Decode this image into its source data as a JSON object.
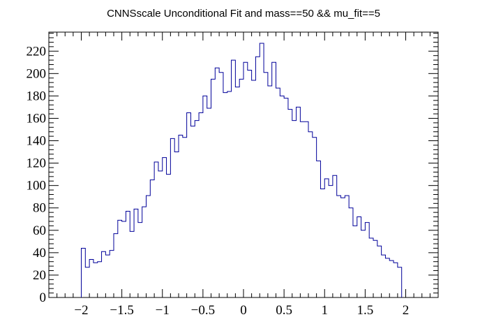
{
  "chart_data": {
    "type": "histogram",
    "title": "CNNSscale Unconditional Fit and mass==50 && mu_fit==5",
    "xlabel": "",
    "ylabel": "",
    "xlim": [
      -2.4,
      2.4
    ],
    "ylim": [
      0,
      237
    ],
    "x_ticks": [
      -2,
      -1.5,
      -1,
      -0.5,
      0,
      0.5,
      1,
      1.5,
      2
    ],
    "x_tick_labels": [
      "−2",
      "−1.5",
      "−1",
      "−0.5",
      "0",
      "0.5",
      "1",
      "1.5",
      "2"
    ],
    "y_ticks": [
      0,
      20,
      40,
      60,
      80,
      100,
      120,
      140,
      160,
      180,
      200,
      220
    ],
    "y_tick_labels": [
      "0",
      "20",
      "40",
      "60",
      "80",
      "100",
      "120",
      "140",
      "160",
      "180",
      "200",
      "220"
    ],
    "bin_edges_start": -2.0,
    "bin_width": 0.05,
    "values": [
      44,
      27,
      34,
      31,
      32,
      41,
      38,
      42,
      57,
      69,
      68,
      77,
      59,
      79,
      67,
      81,
      91,
      105,
      121,
      113,
      125,
      110,
      142,
      130,
      145,
      143,
      165,
      153,
      158,
      165,
      180,
      169,
      195,
      205,
      201,
      183,
      184,
      212,
      188,
      195,
      210,
      203,
      194,
      215,
      227,
      201,
      189,
      210,
      187,
      180,
      178,
      168,
      158,
      170,
      157,
      157,
      148,
      143,
      122,
      97,
      106,
      100,
      109,
      91,
      89,
      91,
      80,
      64,
      72,
      60,
      67,
      53,
      51,
      46,
      38,
      35,
      33,
      31,
      27
    ],
    "line_color": "#000099",
    "grid": false,
    "legend": "none"
  }
}
